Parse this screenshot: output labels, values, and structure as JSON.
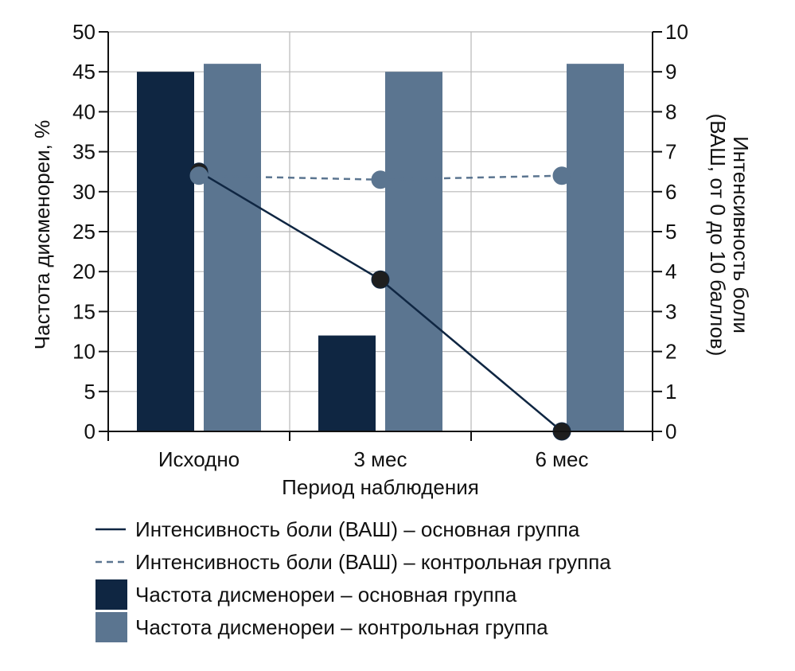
{
  "chart_data": {
    "type": "bar",
    "categories": [
      "Исходно",
      "3 мес",
      "6 мес"
    ],
    "xlabel": "Период наблюдения",
    "ylabel": "Частота дисменореи, %",
    "y2label_line1": "Интенсивность боли",
    "y2label_line2": "(ВАШ, от 0 до 10 баллов)",
    "ylim": [
      0,
      50
    ],
    "yticks": [
      0,
      5,
      10,
      15,
      20,
      25,
      30,
      35,
      40,
      45,
      50
    ],
    "y2lim": [
      0,
      10
    ],
    "y2ticks": [
      0,
      1,
      2,
      3,
      4,
      5,
      6,
      7,
      8,
      9,
      10
    ],
    "grid": true,
    "legend_position": "bottom",
    "bar_series": [
      {
        "name": "Частота дисменореи – основная группа",
        "values": [
          45,
          12,
          0
        ],
        "color": "#0f2642"
      },
      {
        "name": "Частота дисменореи – контрольная группа",
        "values": [
          46,
          45,
          46
        ],
        "color": "#5b7590"
      }
    ],
    "line_series": [
      {
        "name": "Интенсивность боли (ВАШ) – основная группа",
        "values": [
          6.5,
          3.8,
          0
        ],
        "color": "#0f2642",
        "dash": "solid",
        "marker_color": "#1e1e1e"
      },
      {
        "name": "Интенсивность боли (ВАШ) – контрольная группа",
        "values": [
          6.4,
          6.3,
          6.4
        ],
        "color": "#5b7590",
        "dash": "dashed",
        "marker_color": "#5b7590"
      }
    ]
  }
}
